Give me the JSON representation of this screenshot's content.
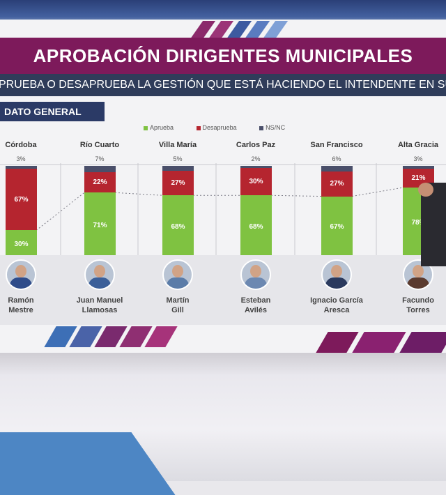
{
  "title": "APROBACIÓN DIRIGENTES MUNICIPALES",
  "subtitle": "PRUEBA O DESAPRUEBA LA GESTIÓN QUE ESTÁ HACIENDO EL INTENDENTE EN SU CIUD",
  "tab_label": "DATO GENERAL",
  "legend": {
    "approve": "Aprueba",
    "disapprove": "Desaprueba",
    "nsnc": "NS/NC"
  },
  "colors": {
    "approve": "#7fc241",
    "disapprove": "#b5252f",
    "nsnc": "#4a4f6a",
    "title_band": "#7d1a5b",
    "subtitle_band": "#2f3c5a"
  },
  "chart_data": {
    "type": "bar",
    "title": "APROBACIÓN DIRIGENTES MUNICIPALES",
    "categories": [
      "Córdoba",
      "Río Cuarto",
      "Villa María",
      "Carlos Paz",
      "San Francisco",
      "Alta Gracia"
    ],
    "series": [
      {
        "name": "Aprueba",
        "values": [
          30,
          71,
          68,
          68,
          67,
          78
        ]
      },
      {
        "name": "Desaprueba",
        "values": [
          67,
          22,
          27,
          30,
          27,
          21
        ]
      },
      {
        "name": "NS/NC",
        "values": [
          3,
          7,
          5,
          2,
          6,
          3
        ]
      }
    ],
    "labels": {
      "approve": [
        "30%",
        "71%",
        "68%",
        "68%",
        "67%",
        "78%"
      ],
      "disapprove": [
        "67%",
        "22%",
        "27%",
        "30%",
        "27%",
        "21%"
      ],
      "nsnc": [
        "3%",
        "7%",
        "5%",
        "2%",
        "6%",
        "3%"
      ]
    },
    "ylim": [
      0,
      100
    ],
    "stacked": true,
    "legend_position": "top"
  },
  "people": [
    {
      "first": "Ramón",
      "last": "Mestre"
    },
    {
      "first": "Juan Manuel",
      "last": "Llamosas"
    },
    {
      "first": "Martín",
      "last": "Gill"
    },
    {
      "first": "Esteban",
      "last": "Avilés"
    },
    {
      "first": "Ignacio García",
      "last": "Aresca"
    },
    {
      "first": "Facundo",
      "last": "Torres"
    }
  ]
}
